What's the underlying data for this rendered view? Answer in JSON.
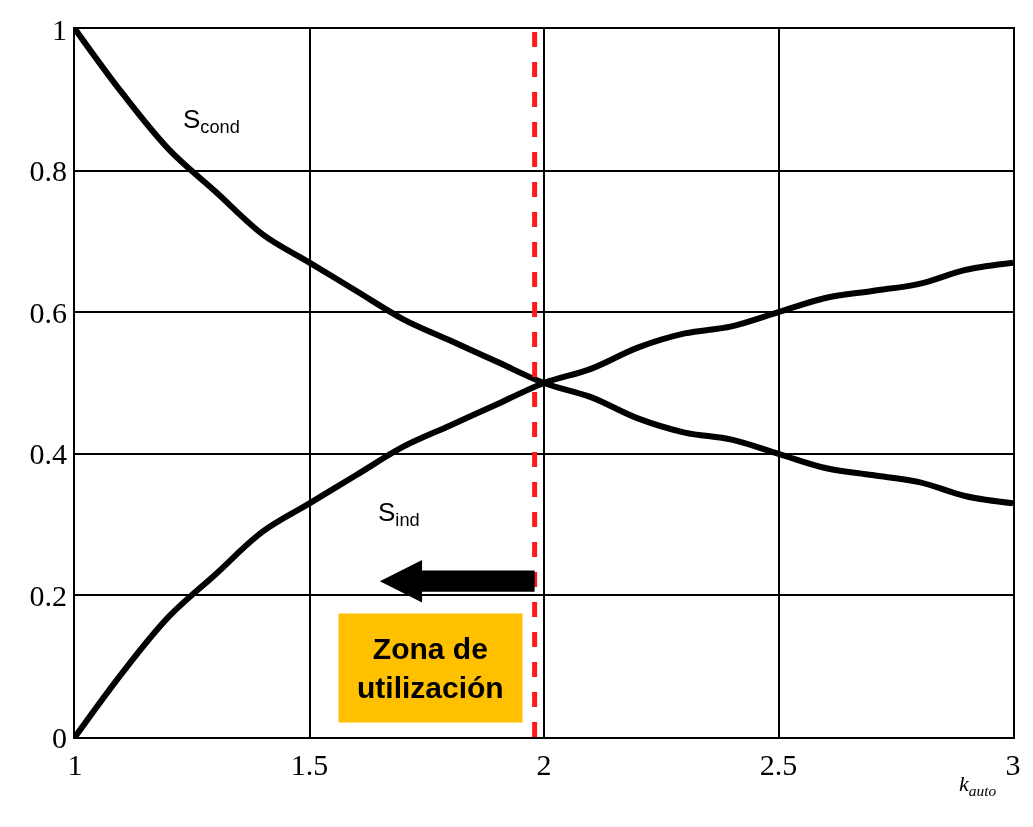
{
  "chart_data": {
    "type": "line",
    "xlabel": "k$_{auto}$",
    "x": [
      1.0,
      1.1,
      1.2,
      1.3,
      1.4,
      1.5,
      1.6,
      1.7,
      1.8,
      1.9,
      2.0,
      2.1,
      2.2,
      2.3,
      2.4,
      2.5,
      2.6,
      2.7,
      2.8,
      2.9,
      3.0
    ],
    "series": [
      {
        "name": "S$_{cond}$",
        "color": "#000000",
        "values": [
          1.0,
          0.91,
          0.83,
          0.77,
          0.71,
          0.67,
          0.63,
          0.59,
          0.56,
          0.53,
          0.5,
          0.48,
          0.45,
          0.43,
          0.42,
          0.4,
          0.38,
          0.37,
          0.36,
          0.34,
          0.33
        ]
      },
      {
        "name": "S$_{ind}$",
        "color": "#000000",
        "values": [
          0.0,
          0.09,
          0.17,
          0.23,
          0.29,
          0.33,
          0.37,
          0.41,
          0.44,
          0.47,
          0.5,
          0.52,
          0.55,
          0.57,
          0.58,
          0.6,
          0.62,
          0.63,
          0.64,
          0.66,
          0.67
        ]
      }
    ],
    "xlim": [
      1,
      3
    ],
    "xticks": [
      1,
      1.5,
      2,
      2.5,
      3
    ],
    "ylim": [
      0,
      1
    ],
    "yticks": [
      0,
      0.2,
      0.4,
      0.6,
      0.8,
      1
    ],
    "ref_lines": [
      {
        "axis": "x",
        "value": 1.98,
        "color": "#ff1a1a",
        "line_style": "dashed"
      }
    ],
    "annotations": [
      "Zona de utilización"
    ],
    "grid": true,
    "legend": false,
    "marker": "none",
    "line_style": "solid"
  }
}
